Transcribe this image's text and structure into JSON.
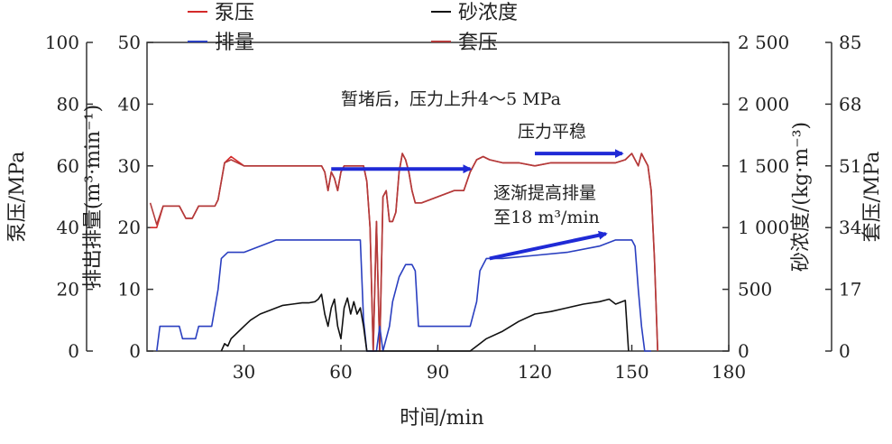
{
  "chart_data": {
    "type": "line",
    "title": "",
    "xlabel": "时间/min",
    "xlim": [
      0,
      180
    ],
    "x_ticks": [
      "30",
      "60",
      "90",
      "120",
      "150",
      "180"
    ],
    "axes": {
      "pump_pressure": {
        "label": "泵压/MPa",
        "ylim": [
          0,
          100
        ],
        "ticks": [
          "0",
          "20",
          "40",
          "60",
          "80",
          "100"
        ]
      },
      "rate": {
        "label": "排出排量(m³·min⁻¹)",
        "ylim": [
          0,
          50
        ],
        "ticks": [
          "0",
          "10",
          "20",
          "30",
          "40",
          "50"
        ]
      },
      "sand_concentration": {
        "label": "砂浓度/(kg·m⁻³)",
        "ylim": [
          0,
          2500
        ],
        "ticks": [
          "0",
          "500",
          "1 000",
          "1 500",
          "2 000",
          "2 500"
        ]
      },
      "casing_pressure": {
        "label": "套压/MPa",
        "ylim": [
          0,
          85
        ],
        "ticks": [
          "0",
          "17",
          "34",
          "51",
          "68",
          "85"
        ]
      }
    },
    "legend": {
      "placement": "top",
      "entries": [
        "泵压",
        "砂浓度",
        "排量",
        "套压"
      ]
    },
    "series": [
      {
        "name": "泵压",
        "axis": "pump_pressure",
        "color": "#d42a2a",
        "x": [
          1,
          3,
          5,
          10,
          12,
          14,
          16,
          21,
          22,
          24,
          26,
          30,
          35,
          40,
          45,
          50,
          52,
          54,
          55,
          56,
          57,
          58,
          59,
          60,
          61,
          62,
          63,
          64,
          65,
          66,
          67,
          68,
          69,
          70,
          71,
          72,
          73,
          74,
          75,
          76,
          77,
          78,
          79,
          80,
          81,
          82,
          83,
          84,
          85,
          90,
          95,
          98,
          100,
          102,
          104,
          106,
          110,
          115,
          120,
          125,
          130,
          135,
          140,
          145,
          148,
          150,
          151,
          152,
          153,
          154,
          155,
          156,
          157,
          158
        ],
        "y": [
          40,
          40,
          47,
          47,
          43,
          43,
          47,
          47,
          49,
          61,
          63,
          60,
          60,
          60,
          60,
          60,
          60,
          60,
          58,
          52,
          58,
          56,
          52,
          58,
          60,
          60,
          60,
          60,
          60,
          60,
          60,
          55,
          40,
          0,
          42,
          0,
          50,
          52,
          42,
          42,
          45,
          58,
          64,
          62,
          58,
          52,
          48,
          48,
          48,
          50,
          52,
          52,
          58,
          62,
          63,
          62,
          61,
          61,
          60,
          61,
          61,
          61,
          61,
          61,
          62,
          64,
          62,
          60,
          64,
          62,
          60,
          52,
          30,
          0
        ]
      },
      {
        "name": "套压",
        "axis": "pump_pressure",
        "color": "#b23a3a",
        "x": [
          1,
          3,
          5,
          10,
          12,
          14,
          16,
          21,
          22,
          24,
          26,
          30,
          35,
          40,
          45,
          50,
          52,
          54,
          55,
          56,
          57,
          58,
          59,
          60,
          61,
          62,
          63,
          64,
          65,
          66,
          67,
          68,
          69,
          70,
          71,
          72,
          73,
          74,
          75,
          76,
          77,
          78,
          79,
          80,
          81,
          82,
          83,
          84,
          85,
          90,
          95,
          98,
          100,
          102,
          104,
          106,
          110,
          115,
          120,
          125,
          130,
          135,
          140,
          145,
          148,
          150,
          151,
          152,
          153,
          154,
          155,
          156,
          157,
          158
        ],
        "y": [
          48,
          41,
          47,
          47,
          43,
          43,
          47,
          47,
          49,
          61,
          62,
          60,
          60,
          60,
          60,
          60,
          60,
          60,
          58,
          52,
          58,
          56,
          52,
          58,
          60,
          60,
          60,
          60,
          60,
          60,
          60,
          55,
          40,
          0,
          42,
          0,
          50,
          52,
          42,
          42,
          45,
          58,
          64,
          62,
          58,
          52,
          48,
          48,
          48,
          50,
          52,
          52,
          58,
          62,
          63,
          62,
          61,
          61,
          60,
          61,
          61,
          61,
          61,
          61,
          62,
          64,
          62,
          60,
          64,
          62,
          60,
          52,
          30,
          0
        ]
      },
      {
        "name": "排量",
        "axis": "rate",
        "color": "#2a3fc0",
        "x": [
          3,
          4,
          10,
          11,
          15,
          16,
          20,
          22,
          23,
          25,
          30,
          35,
          40,
          45,
          50,
          55,
          60,
          65,
          66,
          67,
          68,
          71,
          72,
          73,
          75,
          76,
          78,
          80,
          82,
          83,
          84,
          85,
          86,
          90,
          95,
          100,
          102,
          103,
          105,
          108,
          110,
          120,
          130,
          140,
          145,
          150,
          151,
          152,
          153,
          154,
          156
        ],
        "y": [
          0,
          4,
          4,
          2,
          2,
          4,
          4,
          10,
          15,
          16,
          16,
          17,
          18,
          18,
          18,
          18,
          18,
          18,
          18,
          5,
          0,
          0,
          4,
          0,
          4,
          8,
          12,
          14,
          14,
          13,
          4,
          4,
          4,
          4,
          4,
          4,
          8,
          13,
          15,
          15,
          15,
          15.5,
          16,
          17,
          18,
          18,
          17,
          10,
          4,
          0,
          0
        ]
      },
      {
        "name": "砂浓度",
        "axis": "sand_concentration",
        "color": "#111111",
        "x": [
          23,
          24,
          25,
          26,
          28,
          30,
          32,
          35,
          38,
          40,
          42,
          45,
          48,
          50,
          52,
          53,
          54,
          55,
          56,
          57,
          58,
          59,
          60,
          61,
          62,
          63,
          64,
          65,
          66,
          67,
          68,
          100,
          105,
          110,
          115,
          120,
          125,
          130,
          135,
          140,
          143,
          145,
          147,
          148,
          149
        ],
        "y": [
          0,
          60,
          40,
          100,
          150,
          200,
          250,
          300,
          330,
          350,
          370,
          380,
          390,
          390,
          400,
          420,
          460,
          300,
          200,
          350,
          420,
          200,
          100,
          350,
          430,
          300,
          400,
          300,
          350,
          200,
          0,
          0,
          100,
          160,
          240,
          300,
          320,
          350,
          380,
          400,
          420,
          380,
          400,
          410,
          0
        ]
      }
    ],
    "annotations": [
      {
        "text": "暂堵后，压力上升4～5 MPa",
        "x_start": 57,
        "x_end": 100,
        "y": 59,
        "axis": "pump_pressure"
      },
      {
        "text": "压力平稳",
        "x_start": 120,
        "x_end": 147,
        "y": 64,
        "axis": "pump_pressure"
      },
      {
        "text": "逐渐提高排量",
        "x_start": 106,
        "x_end": 142,
        "y_start": 15,
        "y_end": 19,
        "axis": "rate"
      },
      {
        "text": "至18 m³/min"
      }
    ]
  }
}
